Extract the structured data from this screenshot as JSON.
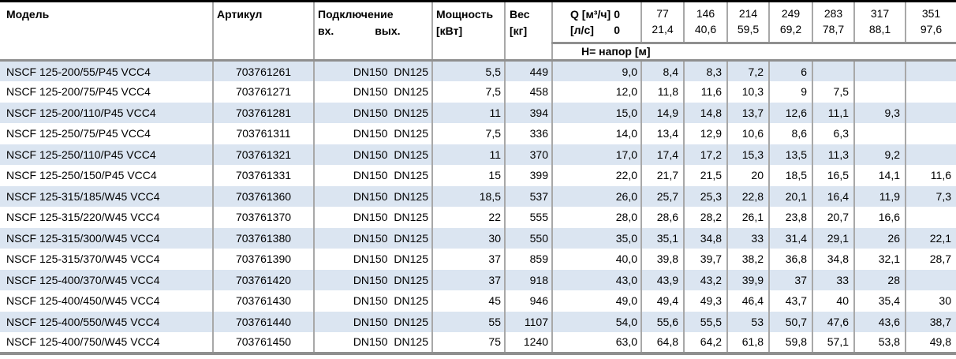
{
  "table": {
    "headers": {
      "model": "Модель",
      "article": "Артикул",
      "connection": "Подключение",
      "connection_in": "вх.",
      "connection_out": "вых.",
      "power_line1": "Мощность",
      "power_line2": "[кВт]",
      "weight_line1": "Вес",
      "weight_line2": "[кг]",
      "q_row1_label": "Q [м³/ч]",
      "q_row1_value": "0",
      "q_row2_label": "[л/с]",
      "q_row2_value": "0",
      "head_label": "Н= напор [м]",
      "q_columns": [
        {
          "m3h": "77",
          "ls": "21,4"
        },
        {
          "m3h": "146",
          "ls": "40,6"
        },
        {
          "m3h": "214",
          "ls": "59,5"
        },
        {
          "m3h": "249",
          "ls": "69,2"
        },
        {
          "m3h": "283",
          "ls": "78,7"
        },
        {
          "m3h": "317",
          "ls": "88,1"
        },
        {
          "m3h": "351",
          "ls": "97,6"
        }
      ]
    },
    "rows": [
      {
        "model": "NSCF 125-200/55/P45 VCC4",
        "article": "703761261",
        "dn_in": "DN150",
        "dn_out": "DN125",
        "power": "5,5",
        "weight": "449",
        "h": [
          "9,0",
          "8,4",
          "8,3",
          "7,2",
          "6",
          "",
          "",
          ""
        ]
      },
      {
        "model": "NSCF 125-200/75/P45 VCC4",
        "article": "703761271",
        "dn_in": "DN150",
        "dn_out": "DN125",
        "power": "7,5",
        "weight": "458",
        "h": [
          "12,0",
          "11,8",
          "11,6",
          "10,3",
          "9",
          "7,5",
          "",
          ""
        ]
      },
      {
        "model": "NSCF 125-200/110/P45 VCC4",
        "article": "703761281",
        "dn_in": "DN150",
        "dn_out": "DN125",
        "power": "11",
        "weight": "394",
        "h": [
          "15,0",
          "14,9",
          "14,8",
          "13,7",
          "12,6",
          "11,1",
          "9,3",
          ""
        ]
      },
      {
        "model": "NSCF 125-250/75/P45 VCC4",
        "article": "703761311",
        "dn_in": "DN150",
        "dn_out": "DN125",
        "power": "7,5",
        "weight": "336",
        "h": [
          "14,0",
          "13,4",
          "12,9",
          "10,6",
          "8,6",
          "6,3",
          "",
          ""
        ]
      },
      {
        "model": "NSCF 125-250/110/P45 VCC4",
        "article": "703761321",
        "dn_in": "DN150",
        "dn_out": "DN125",
        "power": "11",
        "weight": "370",
        "h": [
          "17,0",
          "17,4",
          "17,2",
          "15,3",
          "13,5",
          "11,3",
          "9,2",
          ""
        ]
      },
      {
        "model": "NSCF 125-250/150/P45 VCC4",
        "article": "703761331",
        "dn_in": "DN150",
        "dn_out": "DN125",
        "power": "15",
        "weight": "399",
        "h": [
          "22,0",
          "21,7",
          "21,5",
          "20",
          "18,5",
          "16,5",
          "14,1",
          "11,6"
        ]
      },
      {
        "model": "NSCF 125-315/185/W45 VCC4",
        "article": "703761360",
        "dn_in": "DN150",
        "dn_out": "DN125",
        "power": "18,5",
        "weight": "537",
        "h": [
          "26,0",
          "25,7",
          "25,3",
          "22,8",
          "20,1",
          "16,4",
          "11,9",
          "7,3"
        ]
      },
      {
        "model": "NSCF 125-315/220/W45 VCC4",
        "article": "703761370",
        "dn_in": "DN150",
        "dn_out": "DN125",
        "power": "22",
        "weight": "555",
        "h": [
          "28,0",
          "28,6",
          "28,2",
          "26,1",
          "23,8",
          "20,7",
          "16,6",
          ""
        ]
      },
      {
        "model": "NSCF 125-315/300/W45 VCC4",
        "article": "703761380",
        "dn_in": "DN150",
        "dn_out": "DN125",
        "power": "30",
        "weight": "550",
        "h": [
          "35,0",
          "35,1",
          "34,8",
          "33",
          "31,4",
          "29,1",
          "26",
          "22,1"
        ]
      },
      {
        "model": "NSCF 125-315/370/W45 VCC4",
        "article": "703761390",
        "dn_in": "DN150",
        "dn_out": "DN125",
        "power": "37",
        "weight": "859",
        "h": [
          "40,0",
          "39,8",
          "39,7",
          "38,2",
          "36,8",
          "34,8",
          "32,1",
          "28,7"
        ]
      },
      {
        "model": "NSCF 125-400/370/W45 VCC4",
        "article": "703761420",
        "dn_in": "DN150",
        "dn_out": "DN125",
        "power": "37",
        "weight": "918",
        "h": [
          "43,0",
          "43,9",
          "43,2",
          "39,9",
          "37",
          "33",
          "28",
          ""
        ]
      },
      {
        "model": "NSCF 125-400/450/W45 VCC4",
        "article": "703761430",
        "dn_in": "DN150",
        "dn_out": "DN125",
        "power": "45",
        "weight": "946",
        "h": [
          "49,0",
          "49,4",
          "49,3",
          "46,4",
          "43,7",
          "40",
          "35,4",
          "30"
        ]
      },
      {
        "model": "NSCF 125-400/550/W45 VCC4",
        "article": "703761440",
        "dn_in": "DN150",
        "dn_out": "DN125",
        "power": "55",
        "weight": "1107",
        "h": [
          "54,0",
          "55,6",
          "55,5",
          "53",
          "50,7",
          "47,6",
          "43,6",
          "38,7"
        ]
      },
      {
        "model": "NSCF 125-400/750/W45 VCC4",
        "article": "703761450",
        "dn_in": "DN150",
        "dn_out": "DN125",
        "power": "75",
        "weight": "1240",
        "h": [
          "63,0",
          "64,8",
          "64,2",
          "61,8",
          "59,8",
          "57,1",
          "53,8",
          "49,8"
        ]
      }
    ]
  },
  "colors": {
    "row_stripe": "#dbe5f1",
    "grid_line": "#a8a8a8",
    "thick_line": "#8f8f8f",
    "top_border": "#000000"
  }
}
